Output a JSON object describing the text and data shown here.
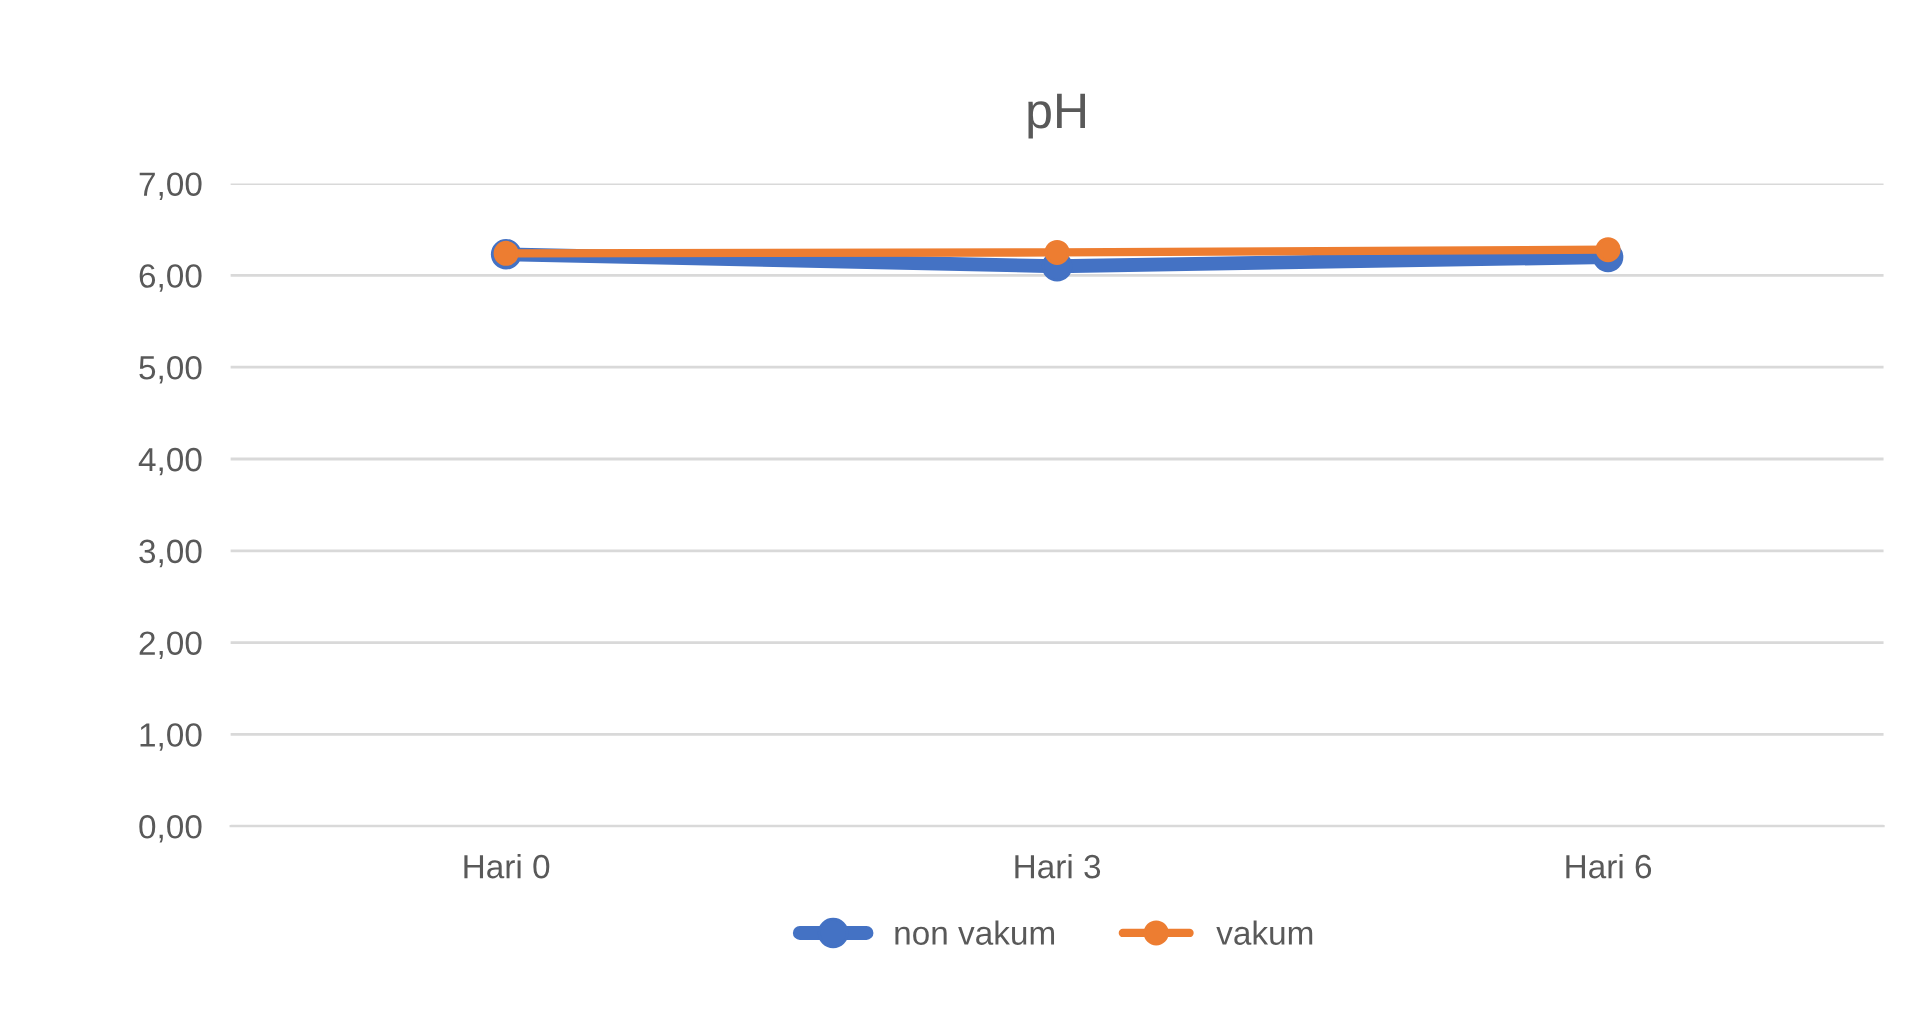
{
  "chart_data": {
    "type": "line",
    "title": "pH",
    "categories": [
      "Hari 0",
      "Hari 3",
      "Hari 6"
    ],
    "series": [
      {
        "name": "non vakum",
        "color": "#4472c4",
        "values": [
          6.23,
          6.1,
          6.2
        ]
      },
      {
        "name": "vakum",
        "color": "#ed7d31",
        "values": [
          6.24,
          6.25,
          6.28
        ]
      }
    ],
    "ylim": [
      0,
      7
    ],
    "yticks": [
      {
        "value": 0,
        "label": "0,00"
      },
      {
        "value": 1,
        "label": "1,00"
      },
      {
        "value": 2,
        "label": "2,00"
      },
      {
        "value": 3,
        "label": "3,00"
      },
      {
        "value": 4,
        "label": "4,00"
      },
      {
        "value": 5,
        "label": "5,00"
      },
      {
        "value": 6,
        "label": "6,00"
      },
      {
        "value": 7,
        "label": "7,00"
      }
    ],
    "grid": "y",
    "legend": "bottom",
    "marker": "circle",
    "line_style": "solid"
  }
}
